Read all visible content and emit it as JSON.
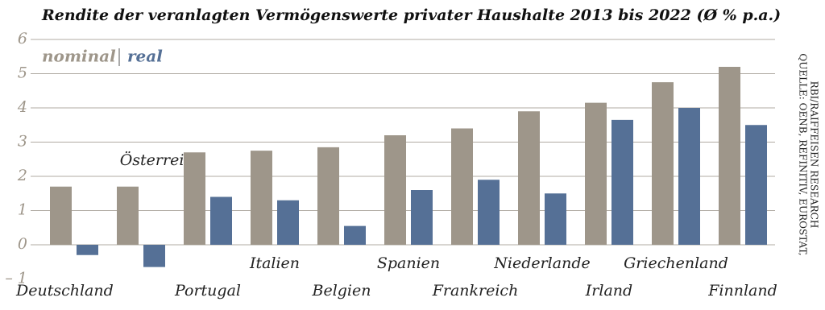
{
  "chart_data": {
    "type": "bar",
    "title": "Rendite der veranlagten Vermögenswerte privater Haushalte 2013 bis 2022 (Ø % p.a.)",
    "categories": [
      "Deutschland",
      "Österreich",
      "Portugal",
      "Italien",
      "Belgien",
      "Spanien",
      "Frankreich",
      "Niederlande",
      "Irland",
      "Griechenland",
      "Finnland"
    ],
    "series": [
      {
        "name": "nominal",
        "color": "#9e968a",
        "values": [
          1.7,
          1.7,
          2.7,
          2.75,
          2.85,
          3.2,
          3.4,
          3.9,
          4.15,
          4.75,
          5.2
        ]
      },
      {
        "name": "real",
        "color": "#557096",
        "values": [
          -0.3,
          -0.65,
          1.4,
          1.3,
          0.55,
          1.6,
          1.9,
          1.5,
          3.65,
          4.0,
          3.5
        ]
      }
    ],
    "ylim": [
      -1,
      6
    ],
    "yticks": [
      {
        "value": -1,
        "label": "– 1"
      },
      0,
      1,
      2,
      3,
      4,
      5,
      6
    ],
    "grid": true,
    "source": [
      "QUELLE: OENB, REFINITIV, EUROSTAT,",
      "RBI/RAIFFEISEN RESEARCH"
    ]
  }
}
